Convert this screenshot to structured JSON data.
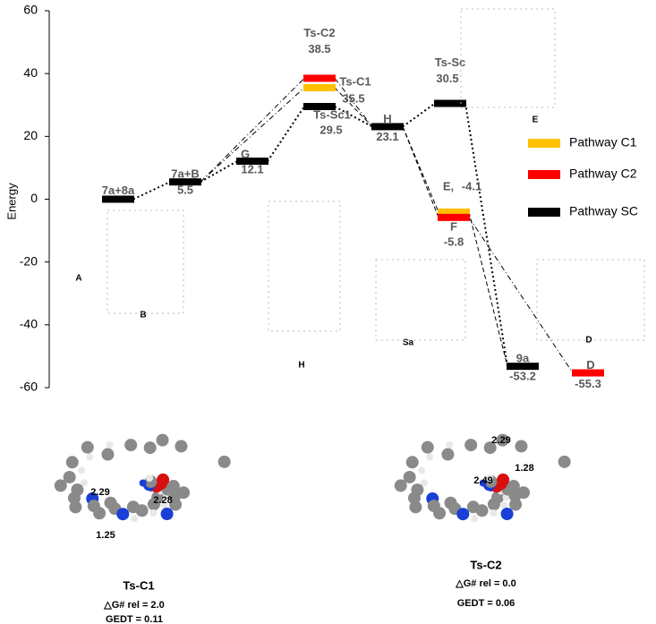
{
  "chart_data": {
    "type": "energy",
    "y_label": "Energy",
    "ylim": [
      -60,
      60
    ],
    "yticks": [
      60,
      40,
      20,
      0,
      -20,
      -40,
      -60
    ],
    "series": [
      {
        "name": "Pathway SC",
        "color": "#000000",
        "labels": [
          "7a+8a",
          "7a+B",
          "G",
          "Ts-Sc1",
          "H",
          "Ts-Sc",
          "9a"
        ],
        "values": [
          0,
          5.5,
          12.1,
          29.5,
          23.1,
          30.5,
          -53.2
        ],
        "value_labels": [
          null,
          "5.5",
          "12.1",
          "29.5",
          "23.1",
          "30.5",
          "-53.2"
        ]
      },
      {
        "name": "Pathway C1",
        "color": "#ffc000",
        "labels": [
          "Ts-C1",
          "E,"
        ],
        "values": [
          35.5,
          -4.1
        ],
        "value_labels": [
          "35.5",
          "-4.1"
        ]
      },
      {
        "name": "Pathway C2",
        "color": "#ff0000",
        "labels": [
          "Ts-C2",
          "F",
          "D"
        ],
        "values": [
          38.5,
          -5.8,
          -55.3
        ],
        "value_labels": [
          "38.5",
          "-5.8",
          "-55.3"
        ]
      }
    ],
    "legend": "right",
    "structure_labels": [
      "A",
      "B",
      "H",
      "Sa",
      "D",
      "E"
    ]
  },
  "panels": [
    {
      "title": "Ts-C1",
      "lines": [
        "△G# rel = 2.0",
        "GEDT = 0.11"
      ],
      "distances": [
        "2.29",
        "2.28",
        "1.25"
      ]
    },
    {
      "title": "Ts-C2",
      "lines": [
        "△G# rel = 0.0",
        "GEDT = 0.06"
      ],
      "distances": [
        "2.29",
        "1.28",
        "2.49"
      ]
    }
  ]
}
